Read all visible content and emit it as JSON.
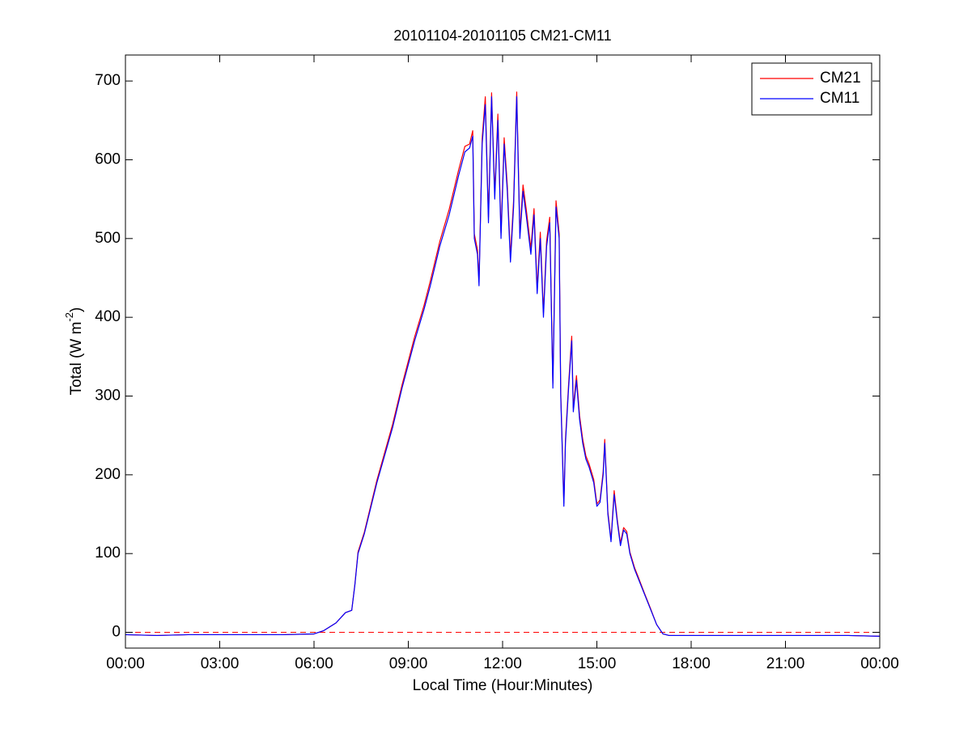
{
  "chart_data": {
    "type": "line",
    "title": "20101104-20101105 CM21-CM11",
    "xlabel": "Local Time (Hour:Minutes)",
    "ylabel": [
      "Total (W m",
      "-2",
      ")"
    ],
    "x": [
      0,
      1,
      2,
      3,
      4,
      5,
      6,
      6.3,
      6.7,
      7,
      7.2,
      7.3,
      7.4,
      7.6,
      8,
      8.5,
      8.8,
      9.2,
      9.5,
      9.7,
      10,
      10.3,
      10.6,
      10.8,
      10.95,
      11.05,
      11.1,
      11.2,
      11.25,
      11.35,
      11.45,
      11.55,
      11.65,
      11.75,
      11.85,
      11.95,
      12.05,
      12.15,
      12.25,
      12.35,
      12.45,
      12.55,
      12.65,
      12.75,
      12.9,
      13,
      13.1,
      13.2,
      13.3,
      13.4,
      13.5,
      13.6,
      13.7,
      13.8,
      13.85,
      13.95,
      14,
      14.1,
      14.2,
      14.25,
      14.35,
      14.45,
      14.55,
      14.65,
      14.75,
      14.9,
      15,
      15.1,
      15.2,
      15.25,
      15.35,
      15.45,
      15.55,
      15.65,
      15.75,
      15.85,
      15.95,
      16.05,
      16.2,
      16.3,
      16.5,
      16.7,
      16.9,
      17.1,
      17.3,
      18,
      19,
      20,
      21,
      22,
      23,
      24
    ],
    "series": [
      {
        "name": "CM21",
        "color": "#ff0000",
        "values": [
          -3,
          -4,
          -3,
          -3,
          -3,
          -3,
          -2,
          2,
          12,
          25,
          28,
          61,
          102,
          127,
          193,
          264,
          314,
          375,
          415,
          446,
          496,
          537,
          587,
          617,
          620,
          637,
          506,
          486,
          446,
          627,
          680,
          527,
          685,
          557,
          658,
          507,
          628,
          567,
          477,
          548,
          686,
          507,
          568,
          538,
          487,
          538,
          437,
          508,
          406,
          497,
          527,
          316,
          548,
          506,
          305,
          164,
          245,
          315,
          376,
          285,
          326,
          275,
          245,
          224,
          214,
          194,
          163,
          168,
          204,
          245,
          153,
          118,
          180,
          143,
          113,
          133,
          128,
          102,
          82,
          72,
          51,
          31,
          10,
          -2,
          -4,
          -4,
          -4,
          -4,
          -4,
          -4,
          -4,
          -5
        ]
      },
      {
        "name": "CM11",
        "color": "#0000ff",
        "values": [
          -3,
          -4,
          -3,
          -3,
          -3,
          -3,
          -2,
          2,
          12,
          25,
          28,
          60,
          100,
          125,
          190,
          260,
          310,
          370,
          410,
          440,
          490,
          530,
          580,
          610,
          615,
          630,
          500,
          480,
          440,
          620,
          670,
          520,
          680,
          550,
          650,
          500,
          620,
          560,
          470,
          540,
          680,
          500,
          560,
          530,
          480,
          530,
          430,
          500,
          400,
          490,
          520,
          310,
          540,
          500,
          300,
          160,
          240,
          310,
          370,
          280,
          320,
          270,
          240,
          220,
          210,
          190,
          160,
          165,
          200,
          240,
          150,
          115,
          175,
          140,
          110,
          130,
          125,
          100,
          80,
          70,
          50,
          30,
          10,
          -2,
          -4,
          -4,
          -4,
          -4,
          -4,
          -4,
          -4,
          -5
        ]
      }
    ],
    "hline": {
      "value": 0,
      "color": "#ff0000",
      "style": "dashed"
    },
    "xlim": [
      0,
      24
    ],
    "xticks": [
      {
        "value": 0,
        "label": "00:00"
      },
      {
        "value": 3,
        "label": "03:00"
      },
      {
        "value": 6,
        "label": "06:00"
      },
      {
        "value": 9,
        "label": "09:00"
      },
      {
        "value": 12,
        "label": "12:00"
      },
      {
        "value": 15,
        "label": "15:00"
      },
      {
        "value": 18,
        "label": "18:00"
      },
      {
        "value": 21,
        "label": "21:00"
      },
      {
        "value": 24,
        "label": "00:00"
      }
    ],
    "ylim": [
      -20,
      733
    ],
    "yticks": [
      0,
      100,
      200,
      300,
      400,
      500,
      600,
      700
    ],
    "legend": "top-right",
    "grid": false
  }
}
